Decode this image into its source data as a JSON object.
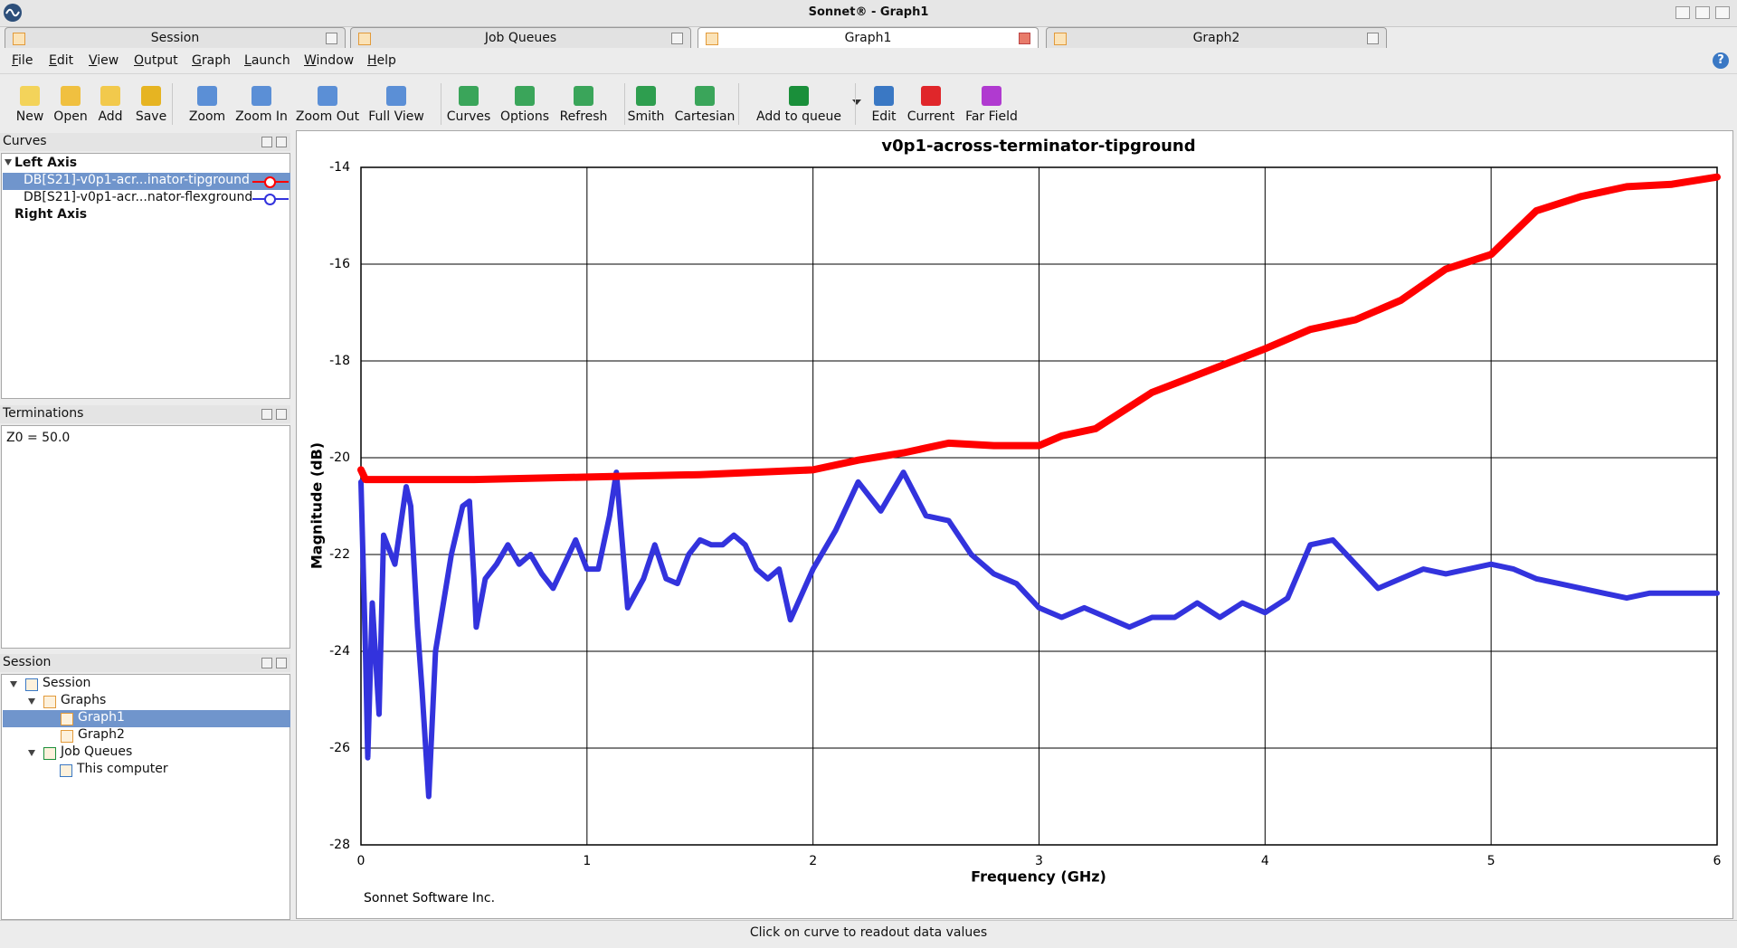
{
  "window": {
    "title": "Sonnet® - Graph1"
  },
  "tabs": [
    "Session",
    "Job Queues",
    "Graph1",
    "Graph2"
  ],
  "menu": [
    "File",
    "Edit",
    "View",
    "Output",
    "Graph",
    "Launch",
    "Window",
    "Help"
  ],
  "toolbar": [
    "New",
    "Open",
    "Add",
    "Save",
    "Zoom",
    "Zoom In",
    "Zoom Out",
    "Full View",
    "Curves",
    "Options",
    "Refresh",
    "Smith",
    "Cartesian",
    "Add to queue",
    "Edit",
    "Current",
    "Far Field"
  ],
  "panels": {
    "curves": {
      "title": "Curves",
      "left_axis": "Left Axis",
      "right_axis": "Right Axis"
    },
    "terminations": {
      "title": "Terminations",
      "text": "Z0 = 50.0"
    },
    "session": {
      "title": "Session",
      "tree": [
        "Session",
        "Graphs",
        "Graph1",
        "Graph2",
        "Job Queues",
        "This computer"
      ]
    }
  },
  "chart_data": {
    "type": "line",
    "title": "v0p1-across-terminator-tipground",
    "xlabel": "Frequency (GHz)",
    "ylabel": "Magnitude (dB)",
    "xlim": [
      0,
      6
    ],
    "xticks": [
      0,
      1,
      2,
      3,
      4,
      5,
      6
    ],
    "ylim": [
      -28,
      -14
    ],
    "yticks": [
      -28,
      -26,
      -24,
      -22,
      -20,
      -18,
      -16,
      -14
    ],
    "grid": true,
    "series": [
      {
        "name": "DB[S21]-v0p1-acr...inator-tipground",
        "color": "#ff0000",
        "x": [
          0,
          0.02,
          0.5,
          1,
          1.5,
          2,
          2.2,
          2.4,
          2.6,
          2.8,
          3,
          3.1,
          3.25,
          3.5,
          3.75,
          4,
          4.2,
          4.4,
          4.6,
          4.8,
          5,
          5.2,
          5.4,
          5.6,
          5.8,
          6
        ],
        "values": [
          -20.25,
          -20.45,
          -20.45,
          -20.4,
          -20.35,
          -20.25,
          -20.05,
          -19.9,
          -19.7,
          -19.75,
          -19.75,
          -19.55,
          -19.4,
          -18.65,
          -18.2,
          -17.75,
          -17.35,
          -17.15,
          -16.75,
          -16.1,
          -15.8,
          -14.9,
          -14.6,
          -14.4,
          -14.35,
          -14.2
        ]
      },
      {
        "name": "DB[S21]-v0p1-acr...nator-flexground",
        "color": "#3333dd",
        "x": [
          0,
          0.02,
          0.03,
          0.05,
          0.08,
          0.1,
          0.15,
          0.2,
          0.22,
          0.25,
          0.27,
          0.3,
          0.33,
          0.4,
          0.45,
          0.48,
          0.5,
          0.51,
          0.55,
          0.6,
          0.65,
          0.7,
          0.75,
          0.8,
          0.85,
          0.9,
          0.95,
          1,
          1.05,
          1.1,
          1.13,
          1.18,
          1.25,
          1.3,
          1.35,
          1.4,
          1.45,
          1.5,
          1.55,
          1.6,
          1.65,
          1.7,
          1.75,
          1.8,
          1.85,
          1.9,
          2,
          2.1,
          2.2,
          2.3,
          2.4,
          2.5,
          2.6,
          2.7,
          2.8,
          2.9,
          3,
          3.1,
          3.2,
          3.3,
          3.4,
          3.5,
          3.6,
          3.7,
          3.8,
          3.9,
          4,
          4.1,
          4.2,
          4.3,
          4.4,
          4.5,
          4.6,
          4.7,
          4.8,
          4.9,
          5,
          5.1,
          5.2,
          5.3,
          5.4,
          5.5,
          5.6,
          5.7,
          5.8,
          5.9,
          6
        ],
        "values": [
          -20.5,
          -24,
          -26.2,
          -23,
          -25.3,
          -21.6,
          -22.2,
          -20.6,
          -21,
          -23.5,
          -24.8,
          -27,
          -24,
          -22,
          -21,
          -20.9,
          -22.5,
          -23.5,
          -22.5,
          -22.2,
          -21.8,
          -22.2,
          -22,
          -22.4,
          -22.7,
          -22.2,
          -21.7,
          -22.3,
          -22.3,
          -21.2,
          -20.3,
          -23.1,
          -22.5,
          -21.8,
          -22.5,
          -22.6,
          -22,
          -21.7,
          -21.8,
          -21.8,
          -21.6,
          -21.8,
          -22.3,
          -22.5,
          -22.3,
          -23.35,
          -22.3,
          -21.5,
          -20.5,
          -21.1,
          -20.3,
          -21.2,
          -21.3,
          -22,
          -22.4,
          -22.6,
          -23.1,
          -23.3,
          -23.1,
          -23.3,
          -23.5,
          -23.3,
          -23.3,
          -23,
          -23.3,
          -23,
          -23.2,
          -22.9,
          -21.8,
          -21.7,
          -22.2,
          -22.7,
          -22.5,
          -22.3,
          -22.4,
          -22.3,
          -22.2,
          -22.3,
          -22.5,
          -22.6,
          -22.7,
          -22.8,
          -22.9,
          -22.8,
          -22.8,
          -22.8,
          -22.8
        ]
      }
    ]
  },
  "footer": "Sonnet Software Inc.",
  "status": "Click on curve to readout data values"
}
